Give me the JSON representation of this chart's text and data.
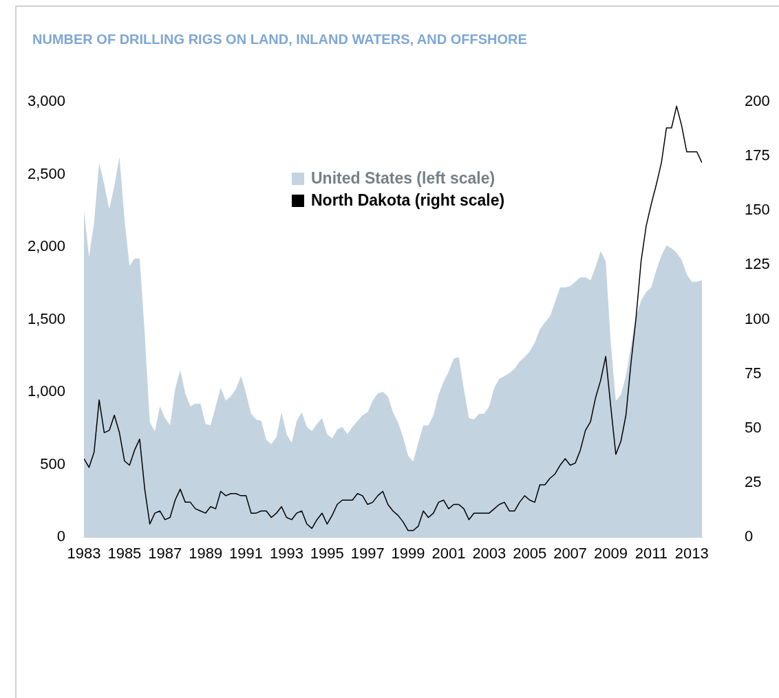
{
  "chart_data": {
    "type": "line",
    "title": "NUMBER OF DRILLING RIGS ON LAND, INLAND WATERS, AND OFFSHORE",
    "legend": "top",
    "x": [
      1983,
      1983.25,
      1983.5,
      1983.75,
      1984,
      1984.25,
      1984.5,
      1984.75,
      1985,
      1985.25,
      1985.5,
      1985.75,
      1986,
      1986.25,
      1986.5,
      1986.75,
      1987,
      1987.25,
      1987.5,
      1987.75,
      1988,
      1988.25,
      1988.5,
      1988.75,
      1989,
      1989.25,
      1989.5,
      1989.75,
      1990,
      1990.25,
      1990.5,
      1990.75,
      1991,
      1991.25,
      1991.5,
      1991.75,
      1992,
      1992.25,
      1992.5,
      1992.75,
      1993,
      1993.25,
      1993.5,
      1993.75,
      1994,
      1994.25,
      1994.5,
      1994.75,
      1995,
      1995.25,
      1995.5,
      1995.75,
      1996,
      1996.25,
      1996.5,
      1996.75,
      1997,
      1997.25,
      1997.5,
      1997.75,
      1998,
      1998.25,
      1998.5,
      1998.75,
      1999,
      1999.25,
      1999.5,
      1999.75,
      2000,
      2000.25,
      2000.5,
      2000.75,
      2001,
      2001.25,
      2001.5,
      2001.75,
      2002,
      2002.25,
      2002.5,
      2002.75,
      2003,
      2003.25,
      2003.5,
      2003.75,
      2004,
      2004.25,
      2004.5,
      2004.75,
      2005,
      2005.25,
      2005.5,
      2005.75,
      2006,
      2006.25,
      2006.5,
      2006.75,
      2007,
      2007.25,
      2007.5,
      2007.75,
      2008,
      2008.25,
      2008.5,
      2008.75,
      2009,
      2009.25,
      2009.5,
      2009.75,
      2010,
      2010.25,
      2010.5,
      2010.75,
      2011,
      2011.25,
      2011.5,
      2011.75,
      2012,
      2012.25,
      2012.5,
      2012.75,
      2013,
      2013.25,
      2013.5
    ],
    "xlim": [
      1983,
      2013.5
    ],
    "xticks": [
      1983,
      1985,
      1987,
      1989,
      1991,
      1993,
      1995,
      1997,
      1999,
      2001,
      2003,
      2005,
      2007,
      2009,
      2011,
      2013
    ],
    "ylim": [
      0,
      3000
    ],
    "yticks": [
      {
        "value": 0,
        "label": "0"
      },
      {
        "value": 500,
        "label": "500"
      },
      {
        "value": 1000,
        "label": "1,000"
      },
      {
        "value": 1500,
        "label": "1,500"
      },
      {
        "value": 2000,
        "label": "2,000"
      },
      {
        "value": 2500,
        "label": "2,500"
      },
      {
        "value": 3000,
        "label": "3,000"
      }
    ],
    "y2lim": [
      0,
      200
    ],
    "y2ticks": [
      0,
      25,
      50,
      75,
      100,
      125,
      150,
      175,
      200
    ],
    "series": [
      {
        "name": "United States (left scale)",
        "type": "area",
        "axis": "y",
        "color": "#c3d3e0",
        "values": [
          2250,
          1930,
          2170,
          2580,
          2430,
          2260,
          2420,
          2620,
          2190,
          1870,
          1920,
          1920,
          1400,
          790,
          730,
          900,
          820,
          770,
          1020,
          1150,
          990,
          900,
          920,
          920,
          780,
          770,
          900,
          1030,
          940,
          970,
          1020,
          1110,
          990,
          850,
          810,
          800,
          670,
          640,
          690,
          860,
          710,
          650,
          800,
          860,
          760,
          730,
          780,
          820,
          710,
          680,
          740,
          760,
          710,
          760,
          800,
          840,
          860,
          940,
          990,
          1000,
          970,
          860,
          790,
          690,
          560,
          520,
          650,
          770,
          770,
          840,
          980,
          1070,
          1140,
          1230,
          1240,
          1020,
          820,
          810,
          850,
          850,
          900,
          1030,
          1090,
          1110,
          1130,
          1160,
          1210,
          1240,
          1280,
          1340,
          1430,
          1480,
          1520,
          1620,
          1720,
          1720,
          1730,
          1760,
          1790,
          1790,
          1770,
          1860,
          1970,
          1900,
          1340,
          940,
          980,
          1110,
          1320,
          1520,
          1630,
          1690,
          1720,
          1840,
          1940,
          2010,
          1990,
          1960,
          1910,
          1810,
          1760,
          1760,
          1770
        ]
      },
      {
        "name": "North Dakota (right scale)",
        "type": "line",
        "axis": "y2",
        "color": "#000000",
        "values": [
          36,
          32,
          39,
          63,
          48,
          49,
          56,
          48,
          35,
          33,
          40,
          45,
          22,
          6,
          11,
          12,
          8,
          9,
          17,
          22,
          16,
          16,
          13,
          12,
          11,
          14,
          13,
          21,
          19,
          20,
          20,
          19,
          19,
          11,
          11,
          12,
          12,
          9,
          11,
          14,
          9,
          8,
          11,
          12,
          6,
          4,
          8,
          11,
          6,
          10,
          15,
          17,
          17,
          17,
          20,
          19,
          15,
          16,
          19,
          21,
          15,
          12,
          10,
          7,
          3,
          3,
          5,
          12,
          9,
          11,
          16,
          17,
          13,
          15,
          15,
          13,
          8,
          11,
          11,
          11,
          11,
          13,
          15,
          16,
          12,
          12,
          16,
          19,
          17,
          16,
          24,
          24,
          27,
          29,
          33,
          36,
          33,
          34,
          40,
          49,
          53,
          64,
          72,
          83,
          60,
          38,
          44,
          56,
          80,
          101,
          127,
          143,
          153,
          162,
          172,
          188,
          188,
          198,
          189,
          177,
          177,
          177,
          172
        ]
      }
    ]
  }
}
